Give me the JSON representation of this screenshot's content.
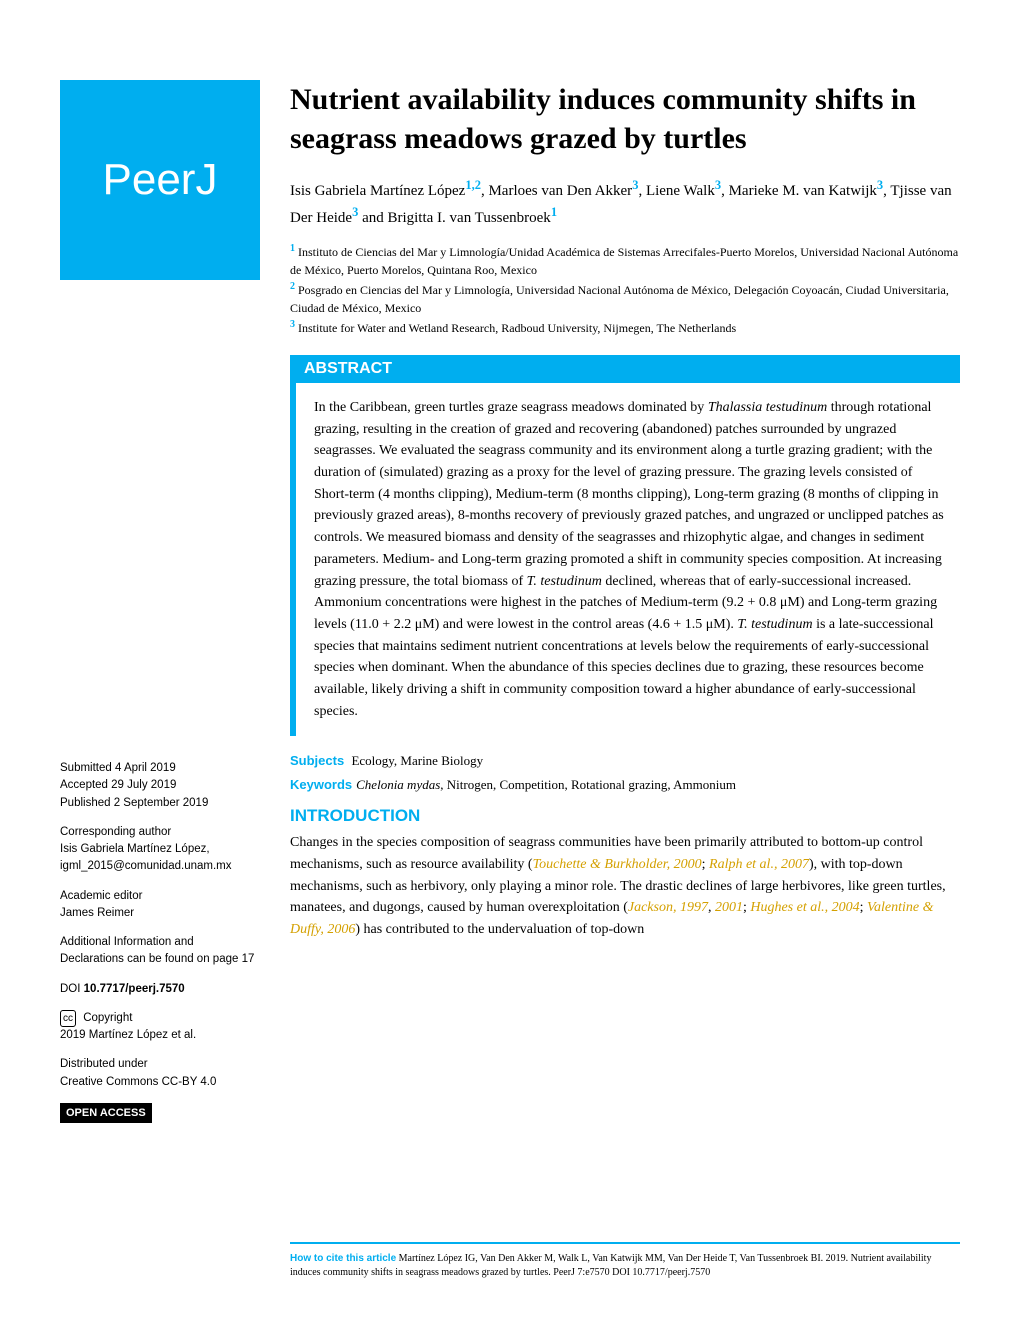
{
  "logo": {
    "text": "PeerJ"
  },
  "title": "Nutrient availability induces community shifts in seagrass meadows grazed by turtles",
  "authors_html": "Isis Gabriela Martínez López<sup>1,2</sup>, Marloes van Den Akker<sup>3</sup>, Liene Walk<sup>3</sup>, Marieke M. van Katwijk<sup>3</sup>, Tjisse van Der Heide<sup>3</sup> and Brigitta I. van Tussenbroek<sup>1</sup>",
  "affiliations": [
    {
      "num": "1",
      "text": "Instituto de Ciencias del Mar y Limnología/Unidad Académica de Sistemas Arrecifales-Puerto Morelos, Universidad Nacional Autónoma de México, Puerto Morelos, Quintana Roo, Mexico"
    },
    {
      "num": "2",
      "text": "Posgrado en Ciencias del Mar y Limnología, Universidad Nacional Autónoma de México, Delegación Coyoacán, Ciudad Universitaria, Ciudad de México, Mexico"
    },
    {
      "num": "3",
      "text": "Institute for Water and Wetland Research, Radboud University, Nijmegen, The Netherlands"
    }
  ],
  "abstract": {
    "header": "ABSTRACT",
    "text_html": "In the Caribbean, green turtles graze seagrass meadows dominated by <span class='italic'>Thalassia testudinum</span> through rotational grazing, resulting in the creation of grazed and recovering (abandoned) patches surrounded by ungrazed seagrasses. We evaluated the seagrass community and its environment along a turtle grazing gradient; with the duration of (simulated) grazing as a proxy for the level of grazing pressure. The grazing levels consisted of Short-term (4 months clipping), Medium-term (8 months clipping), Long-term grazing (8 months of clipping in previously grazed areas), 8-months recovery of previously grazed patches, and ungrazed or unclipped patches as controls. We measured biomass and density of the seagrasses and rhizophytic algae, and changes in sediment parameters. Medium- and Long-term grazing promoted a shift in community species composition. At increasing grazing pressure, the total biomass of <span class='italic'>T. testudinum</span> declined, whereas that of early-successional increased. Ammonium concentrations were highest in the patches of Medium-term (9.2 + 0.8 μM) and Long-term grazing levels (11.0 + 2.2 μM) and were lowest in the control areas (4.6 + 1.5 μM). <span class='italic'>T. testudinum</span> is a late-successional species that maintains sediment nutrient concentrations at levels below the requirements of early-successional species when dominant. When the abundance of this species declines due to grazing, these resources become available, likely driving a shift in community composition toward a higher abundance of early-successional species."
  },
  "subjects": {
    "label": "Subjects",
    "text": "Ecology, Marine Biology"
  },
  "keywords": {
    "label": "Keywords",
    "text_html": "<span style='font-style:italic'>Chelonia mydas</span>, Nitrogen, Competition, Rotational grazing, Ammonium"
  },
  "intro": {
    "header": "INTRODUCTION",
    "text_html": "Changes in the species composition of seagrass communities have been primarily attributed to bottom-up control mechanisms, such as resource availability (<span class='cite'>Touchette &amp; Burkholder, 2000</span>; <span class='cite'>Ralph et al., 2007</span>), with top-down mechanisms, such as herbivory, only playing a minor role. The drastic declines of large herbivores, like green turtles, manatees, and dugongs, caused by human overexploitation (<span class='cite'>Jackson, 1997</span>, <span class='cite'>2001</span>; <span class='cite'>Hughes et al., 2004</span>; <span class='cite'>Valentine &amp; Duffy, 2006</span>) has contributed to the undervaluation of top-down"
  },
  "sidebar": {
    "submitted": {
      "label": "Submitted",
      "value": "4 April 2019"
    },
    "accepted": {
      "label": "Accepted",
      "value": "29 July 2019"
    },
    "published": {
      "label": "Published",
      "value": "2 September 2019"
    },
    "corresponding": {
      "label": "Corresponding author",
      "name": "Isis Gabriela Martínez López,",
      "email": "igml_2015@comunidad.unam.mx"
    },
    "editor": {
      "label": "Academic editor",
      "name": "James Reimer"
    },
    "additional": "Additional Information and Declarations can be found on page 17",
    "doi": {
      "label": "DOI",
      "value": "10.7717/peerj.7570"
    },
    "copyright": {
      "icon": "cc",
      "label": "Copyright",
      "text": "2019 Martínez López et al."
    },
    "distributed": "Distributed under\nCreative Commons CC-BY 4.0",
    "open_access": "OPEN ACCESS"
  },
  "footer": {
    "label": "How to cite this article",
    "text": "Martínez López IG, Van Den Akker M, Walk L, Van Katwijk MM, Van Der Heide T, Van Tussenbroek BI. 2019. Nutrient availability induces community shifts in seagrass meadows grazed by turtles. PeerJ 7:e7570 DOI 10.7717/peerj.7570"
  },
  "colors": {
    "brand": "#00aeef",
    "citation": "#d4a000",
    "black": "#000000"
  }
}
